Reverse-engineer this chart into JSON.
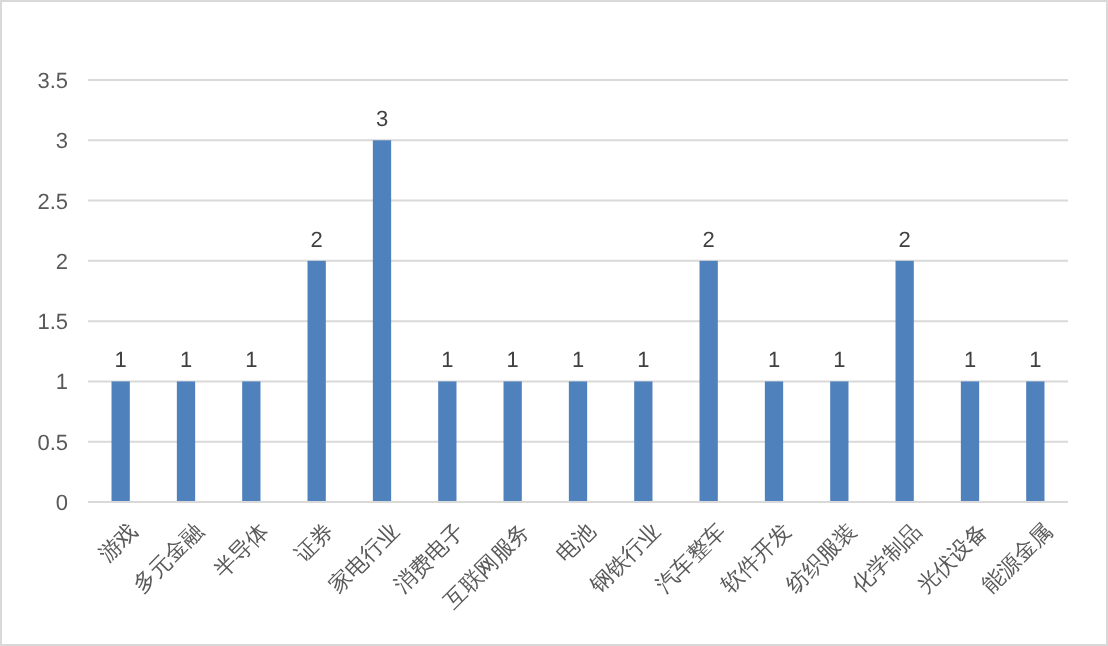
{
  "chart_data": {
    "type": "bar",
    "categories": [
      "游戏",
      "多元金融",
      "半导体",
      "证券",
      "家电行业",
      "消费电子",
      "互联网服务",
      "电池",
      "钢铁行业",
      "汽车整车",
      "软件开发",
      "纺织服装",
      "化学制品",
      "光伏设备",
      "能源金属"
    ],
    "values": [
      1,
      1,
      1,
      2,
      3,
      1,
      1,
      1,
      1,
      2,
      1,
      1,
      2,
      1,
      1
    ],
    "color": "#4f81bd",
    "ylim": [
      0,
      3.5
    ],
    "yticks": [
      0,
      0.5,
      1,
      1.5,
      2,
      2.5,
      3,
      3.5
    ],
    "grid": "y",
    "data_labels": true
  }
}
